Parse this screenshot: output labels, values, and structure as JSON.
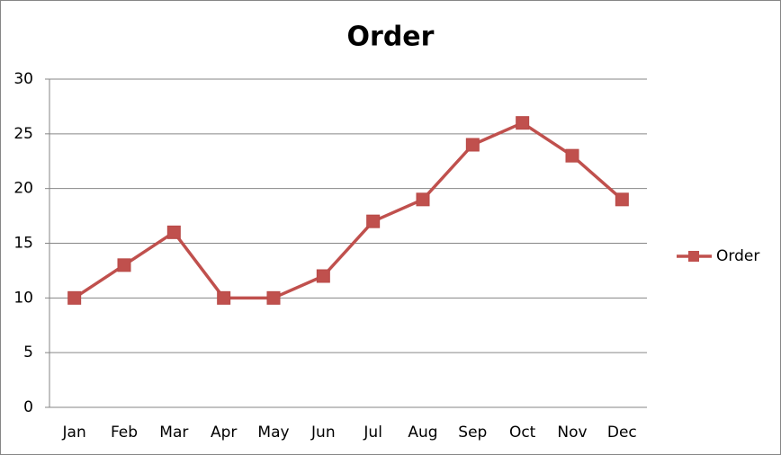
{
  "chart_data": {
    "type": "line",
    "title": "Order",
    "categories": [
      "Jan",
      "Feb",
      "Mar",
      "Apr",
      "May",
      "Jun",
      "Jul",
      "Aug",
      "Sep",
      "Oct",
      "Nov",
      "Dec"
    ],
    "series": [
      {
        "name": "Order",
        "color": "#c0504d",
        "values": [
          10,
          13,
          16,
          10,
          10,
          12,
          17,
          19,
          24,
          26,
          23,
          19
        ]
      }
    ],
    "ylim": [
      0,
      30
    ],
    "yticks": [
      0,
      5,
      10,
      15,
      20,
      25,
      30
    ],
    "grid": true,
    "legend": "right",
    "marker": "square"
  }
}
